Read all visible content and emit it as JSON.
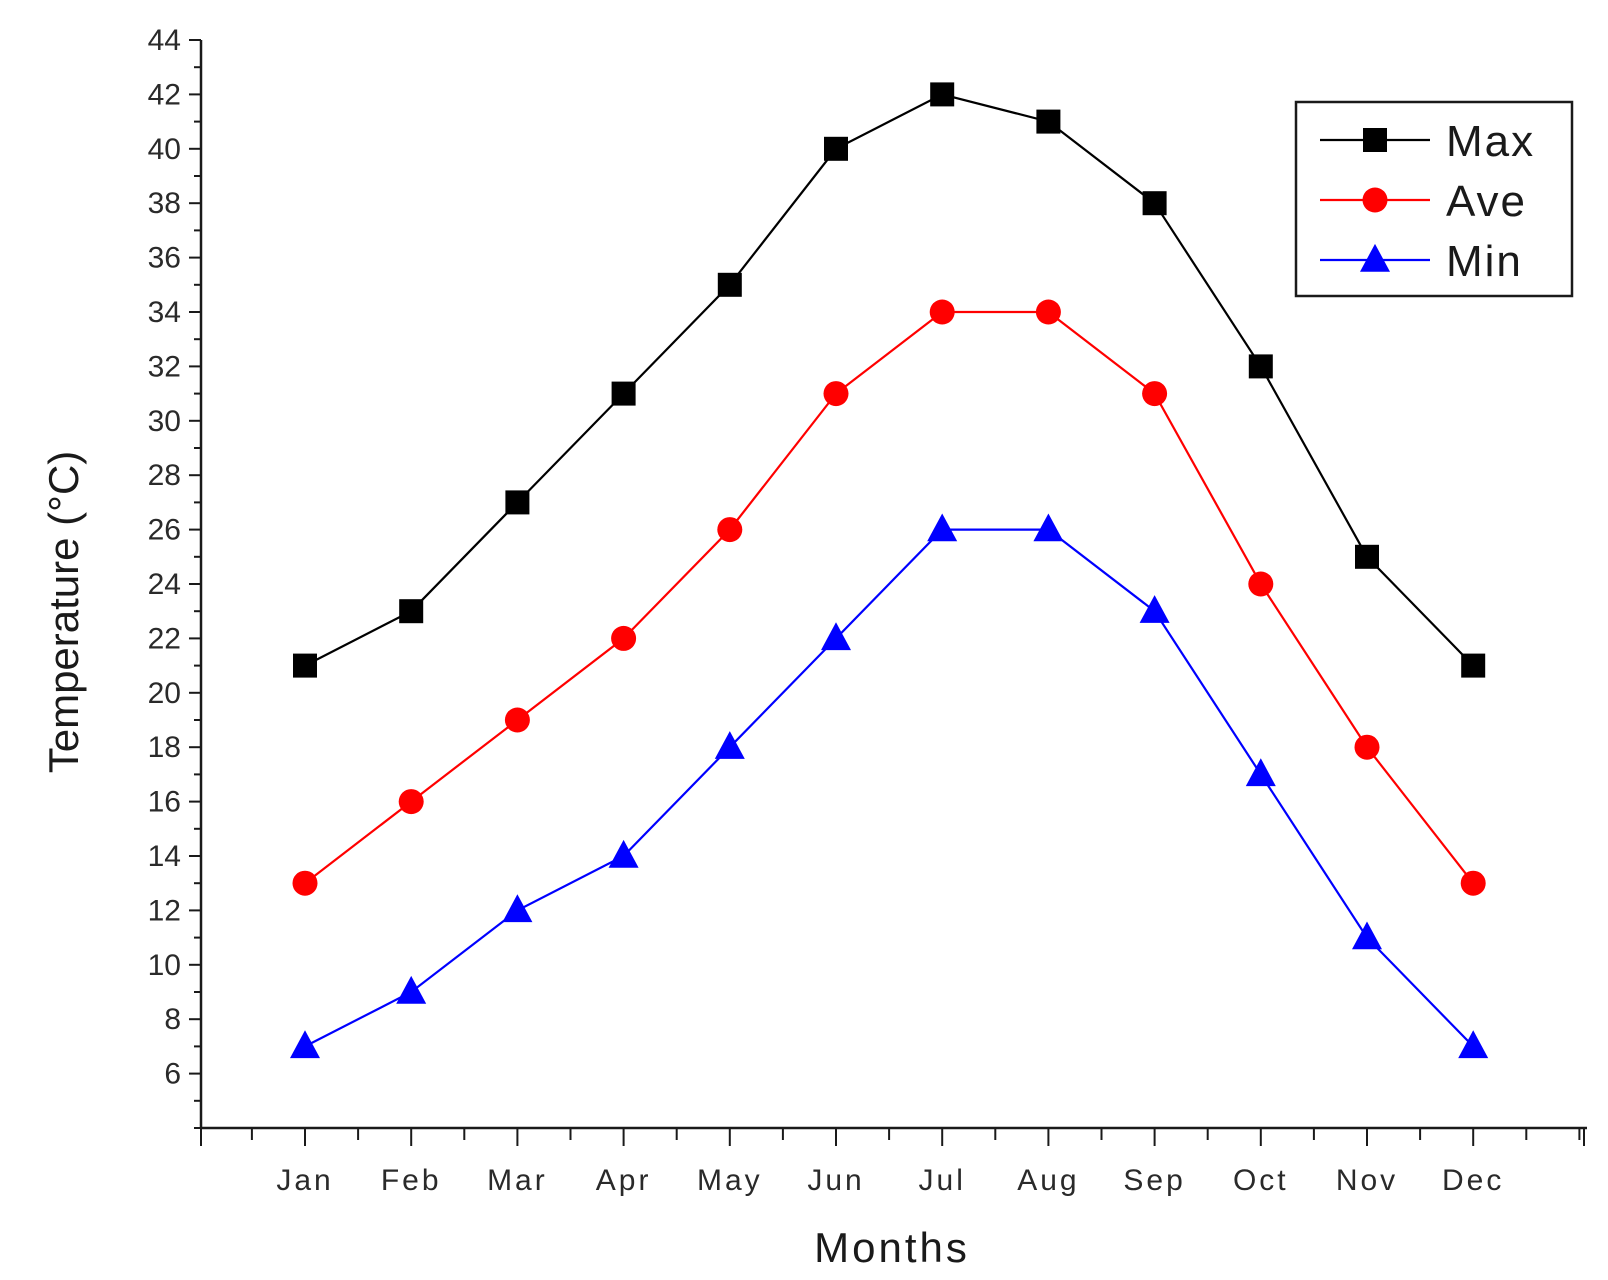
{
  "chart_data": {
    "type": "line",
    "title": "",
    "xlabel": "Months",
    "ylabel": "Temperature (°C)",
    "categories": [
      "Jan",
      "Feb",
      "Mar",
      "Apr",
      "May",
      "Jun",
      "Jul",
      "Aug",
      "Sep",
      "Oct",
      "Nov",
      "Dec"
    ],
    "ylim": [
      4,
      44
    ],
    "yticks": [
      6,
      8,
      10,
      12,
      14,
      16,
      18,
      20,
      22,
      24,
      26,
      28,
      30,
      32,
      34,
      36,
      38,
      40,
      42,
      44
    ],
    "grid": false,
    "legend_position": "top-right",
    "series": [
      {
        "name": "Max",
        "color": "#000000",
        "marker": "square",
        "values": [
          21,
          23,
          27,
          31,
          35,
          40,
          42,
          41,
          38,
          32,
          25,
          21
        ]
      },
      {
        "name": "Ave",
        "color": "#ff0000",
        "marker": "circle",
        "values": [
          13,
          16,
          19,
          22,
          26,
          31,
          34,
          34,
          31,
          24,
          18,
          13
        ]
      },
      {
        "name": "Min",
        "color": "#0000ff",
        "marker": "triangle",
        "values": [
          7,
          9,
          12,
          14,
          18,
          22,
          26,
          26,
          23,
          17,
          11,
          7
        ]
      }
    ]
  }
}
